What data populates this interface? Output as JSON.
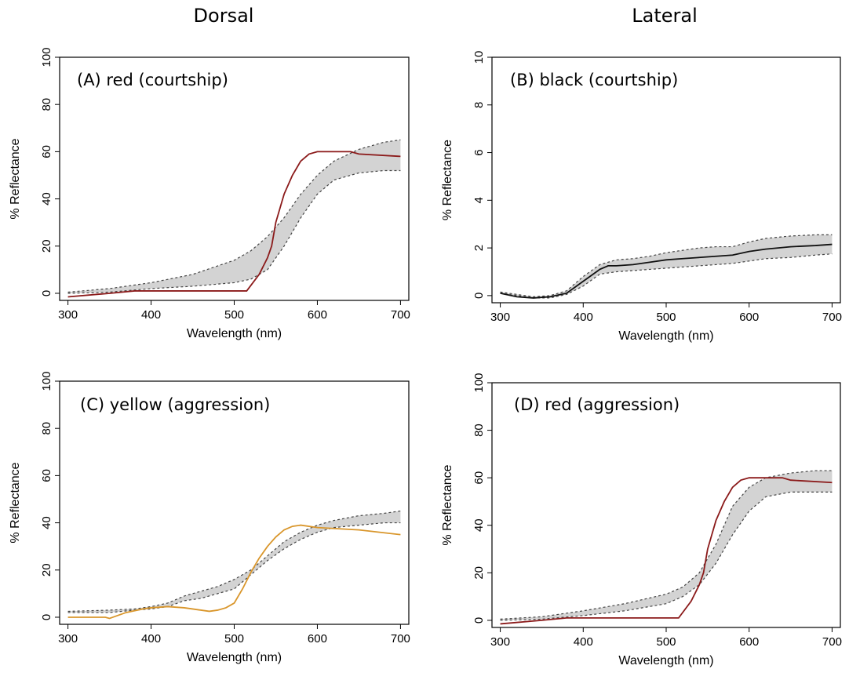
{
  "headers": {
    "left": "Dorsal",
    "right": "Lateral"
  },
  "colors": {
    "red_curve": "#8B1A1A",
    "black_curve": "#111111",
    "yellow_curve": "#D9962B",
    "band_fill": "#D3D3D3",
    "band_edge": "#444444"
  },
  "chart_data": [
    {
      "id": "A",
      "type": "line",
      "label": "(A) red (courtship)",
      "xlabel": "Wavelength (nm)",
      "ylabel": "% Reflectance",
      "xlim": [
        290,
        710
      ],
      "ylim": [
        -3,
        100
      ],
      "xticks": [
        300,
        400,
        500,
        600,
        700
      ],
      "yticks": [
        0,
        20,
        40,
        60,
        80,
        100
      ],
      "curve_color": "#8B1A1A",
      "band": {
        "x": [
          300,
          350,
          400,
          450,
          500,
          520,
          540,
          560,
          580,
          600,
          620,
          650,
          680,
          700
        ],
        "lower": [
          0,
          0.5,
          2,
          3,
          4.5,
          6,
          10,
          20,
          32,
          42,
          48,
          51,
          52,
          52
        ],
        "upper": [
          0.5,
          2,
          4.5,
          8,
          14,
          18,
          24,
          32,
          42,
          50,
          56,
          61,
          64,
          65
        ]
      },
      "curve": {
        "x": [
          300,
          350,
          380,
          400,
          450,
          500,
          515,
          530,
          540,
          545,
          550,
          560,
          570,
          580,
          590,
          600,
          610,
          620,
          640,
          650,
          700
        ],
        "y": [
          -1.5,
          0,
          1,
          1,
          1,
          1,
          1,
          8,
          15,
          20,
          30,
          42,
          50,
          56,
          59,
          60,
          60,
          60,
          60,
          59,
          58
        ]
      }
    },
    {
      "id": "B",
      "type": "line",
      "label": "(B) black (courtship)",
      "xlabel": "Wavelength (nm)",
      "ylabel": "% Reflectance",
      "xlim": [
        290,
        710
      ],
      "ylim": [
        -0.3,
        10
      ],
      "xticks": [
        300,
        400,
        500,
        600,
        700
      ],
      "yticks": [
        0,
        2,
        4,
        6,
        8,
        10
      ],
      "curve_color": "#111111",
      "band": {
        "x": [
          300,
          320,
          340,
          360,
          380,
          400,
          420,
          440,
          460,
          480,
          500,
          520,
          540,
          560,
          580,
          600,
          620,
          650,
          680,
          700
        ],
        "lower": [
          0.1,
          0,
          -0.1,
          -0.1,
          0.05,
          0.4,
          0.9,
          1.0,
          1.05,
          1.1,
          1.15,
          1.2,
          1.25,
          1.3,
          1.35,
          1.45,
          1.55,
          1.6,
          1.7,
          1.75
        ],
        "upper": [
          0.15,
          0.05,
          -0.05,
          0,
          0.2,
          0.8,
          1.3,
          1.5,
          1.55,
          1.65,
          1.8,
          1.9,
          2.0,
          2.05,
          2.05,
          2.25,
          2.4,
          2.5,
          2.55,
          2.55
        ]
      },
      "curve": {
        "x": [
          300,
          320,
          340,
          360,
          380,
          400,
          420,
          430,
          440,
          460,
          480,
          500,
          520,
          540,
          560,
          580,
          600,
          620,
          650,
          680,
          700
        ],
        "y": [
          0.1,
          -0.05,
          -0.1,
          -0.05,
          0.1,
          0.6,
          1.1,
          1.25,
          1.25,
          1.3,
          1.4,
          1.5,
          1.55,
          1.6,
          1.65,
          1.7,
          1.85,
          1.95,
          2.05,
          2.1,
          2.15
        ]
      }
    },
    {
      "id": "C",
      "type": "line",
      "label": "(C) yellow (aggression)",
      "xlabel": "Wavelength (nm)",
      "ylabel": "% Reflectance",
      "xlim": [
        290,
        710
      ],
      "ylim": [
        -3,
        100
      ],
      "xticks": [
        300,
        400,
        500,
        600,
        700
      ],
      "yticks": [
        0,
        20,
        40,
        60,
        80,
        100
      ],
      "curve_color": "#D9962B",
      "band": {
        "x": [
          300,
          350,
          380,
          400,
          420,
          440,
          460,
          480,
          500,
          520,
          540,
          560,
          580,
          600,
          620,
          650,
          680,
          700
        ],
        "lower": [
          2,
          2,
          3,
          3.5,
          4.5,
          7,
          8,
          10,
          12,
          18,
          24,
          29,
          33,
          36,
          38,
          39,
          40,
          40
        ],
        "upper": [
          2.5,
          3,
          3.5,
          4.5,
          6,
          9,
          11,
          13,
          16,
          20,
          26,
          32,
          36,
          39,
          41,
          43,
          44,
          45
        ]
      },
      "curve": {
        "x": [
          300,
          345,
          350,
          370,
          390,
          400,
          420,
          440,
          450,
          460,
          470,
          480,
          490,
          500,
          510,
          520,
          530,
          540,
          550,
          560,
          570,
          580,
          600,
          650,
          700
        ],
        "y": [
          0,
          0,
          -0.5,
          2,
          3.5,
          4,
          4.5,
          4,
          3.5,
          3,
          2.5,
          3,
          4,
          6,
          12,
          19,
          25,
          30,
          34,
          37,
          38.5,
          39,
          38,
          37,
          35
        ]
      }
    },
    {
      "id": "D",
      "type": "line",
      "label": "(D) red (aggression)",
      "xlabel": "Wavelength (nm)",
      "ylabel": "% Reflectance",
      "xlim": [
        290,
        710
      ],
      "ylim": [
        -3,
        100
      ],
      "xticks": [
        300,
        400,
        500,
        600,
        700
      ],
      "yticks": [
        0,
        20,
        40,
        60,
        80,
        100
      ],
      "curve_color": "#8B1A1A",
      "band": {
        "x": [
          300,
          350,
          400,
          450,
          500,
          520,
          540,
          560,
          580,
          600,
          620,
          650,
          680,
          700
        ],
        "lower": [
          0,
          0.5,
          2,
          4,
          7,
          10,
          15,
          24,
          36,
          46,
          52,
          54,
          54,
          54
        ],
        "upper": [
          0.5,
          1.5,
          4,
          7,
          11,
          14,
          20,
          32,
          48,
          56,
          60,
          62,
          63,
          63
        ]
      },
      "curve": {
        "x": [
          300,
          350,
          380,
          400,
          450,
          500,
          515,
          530,
          540,
          545,
          550,
          560,
          570,
          580,
          590,
          600,
          610,
          620,
          640,
          650,
          700
        ],
        "y": [
          -1.5,
          0,
          1,
          1,
          1,
          1,
          1,
          8,
          15,
          20,
          30,
          42,
          50,
          56,
          59,
          60,
          60,
          60,
          60,
          59,
          58
        ]
      }
    }
  ]
}
